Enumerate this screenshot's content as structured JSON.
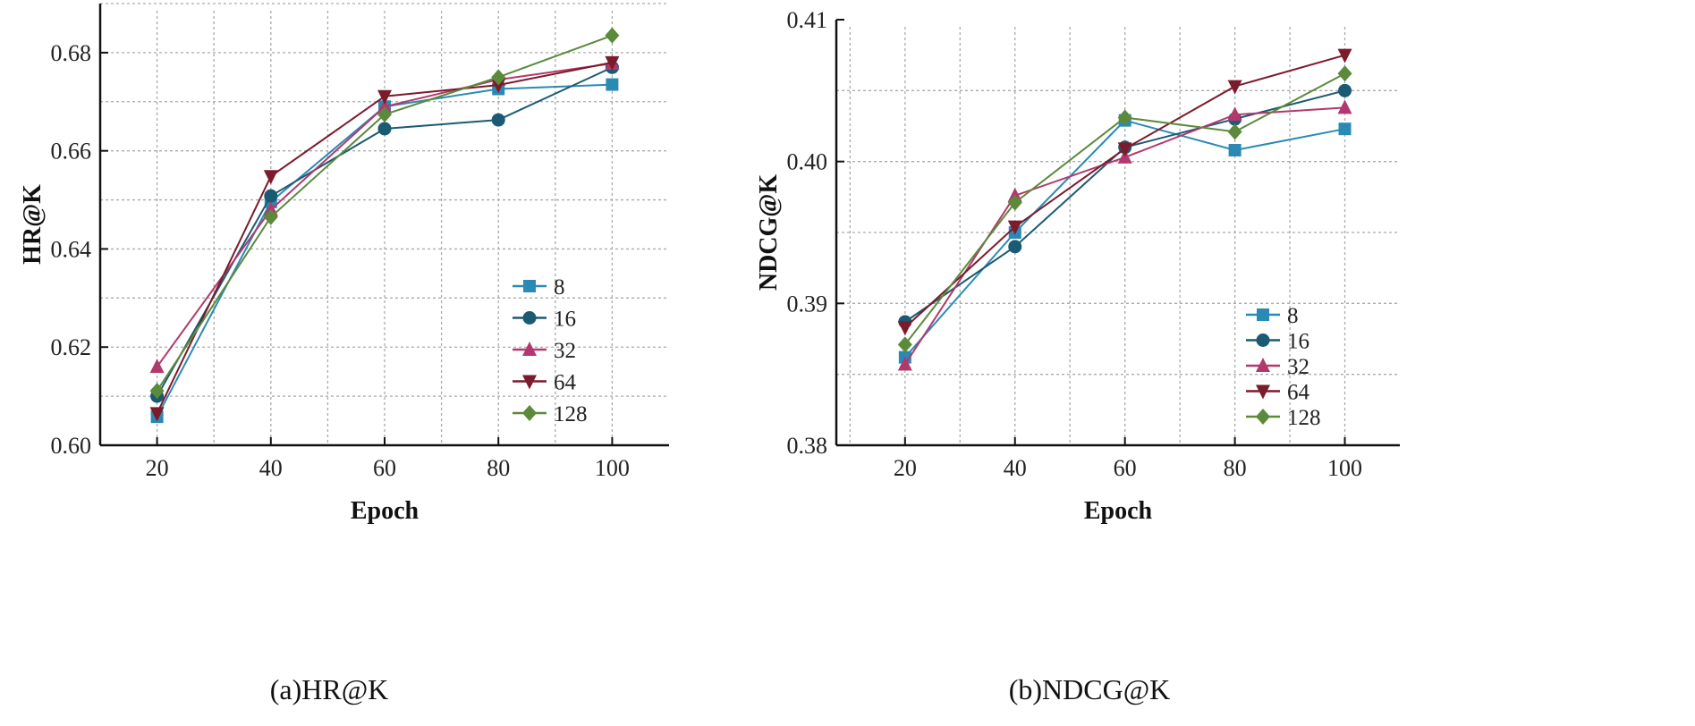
{
  "series_colors": {
    "8": "#2b8ab3",
    "16": "#1b5a73",
    "32": "#b2396d",
    "64": "#7b1b2b",
    "128": "#5b8a3b"
  },
  "series_markers": {
    "8": "square",
    "16": "circle",
    "32": "triangle-up",
    "64": "triangle-down",
    "128": "diamond"
  },
  "chart_data": [
    {
      "type": "line",
      "caption": "(a)HR@K",
      "xlabel": "Epoch",
      "ylabel": "HR@K",
      "x": [
        20,
        40,
        60,
        80,
        100
      ],
      "xticks": [
        20,
        40,
        60,
        80,
        100
      ],
      "xlim": [
        10,
        110
      ],
      "yticks": [
        "0.60",
        "0.62",
        "0.64",
        "0.66",
        "0.68"
      ],
      "ylim": [
        0.6,
        0.69
      ],
      "grid": true,
      "legend_position": "lower-right",
      "series": [
        {
          "name": "8",
          "values": [
            0.6058,
            0.6496,
            0.669,
            0.6726,
            0.6735
          ]
        },
        {
          "name": "16",
          "values": [
            0.61,
            0.6508,
            0.6645,
            0.6663,
            0.677
          ]
        },
        {
          "name": "32",
          "values": [
            0.616,
            0.648,
            0.669,
            0.6745,
            0.6778
          ]
        },
        {
          "name": "64",
          "values": [
            0.6065,
            0.6548,
            0.6711,
            0.6734,
            0.678
          ]
        },
        {
          "name": "128",
          "values": [
            0.6111,
            0.6465,
            0.6674,
            0.675,
            0.6835
          ]
        }
      ]
    },
    {
      "type": "line",
      "caption": "(b)NDCG@K",
      "xlabel": "Epoch",
      "ylabel": "NDCG@K",
      "x": [
        20,
        40,
        60,
        80,
        100
      ],
      "xticks": [
        20,
        40,
        60,
        80,
        100
      ],
      "xlim": [
        7.5,
        110
      ],
      "yticks": [
        "0.38",
        "0.39",
        "0.40",
        "0.41"
      ],
      "ylim": [
        0.38,
        0.41
      ],
      "grid": true,
      "legend_position": "lower-right",
      "series": [
        {
          "name": "8",
          "values": [
            0.3862,
            0.395,
            0.4029,
            0.4008,
            0.4023
          ]
        },
        {
          "name": "16",
          "values": [
            0.3887,
            0.394,
            0.401,
            0.403,
            0.405
          ]
        },
        {
          "name": "32",
          "values": [
            0.3857,
            0.3976,
            0.4003,
            0.4033,
            0.4038
          ]
        },
        {
          "name": "64",
          "values": [
            0.3883,
            0.3954,
            0.4009,
            0.4053,
            0.4075
          ]
        },
        {
          "name": "128",
          "values": [
            0.3871,
            0.3971,
            0.4031,
            0.4021,
            0.4062
          ]
        }
      ]
    }
  ]
}
